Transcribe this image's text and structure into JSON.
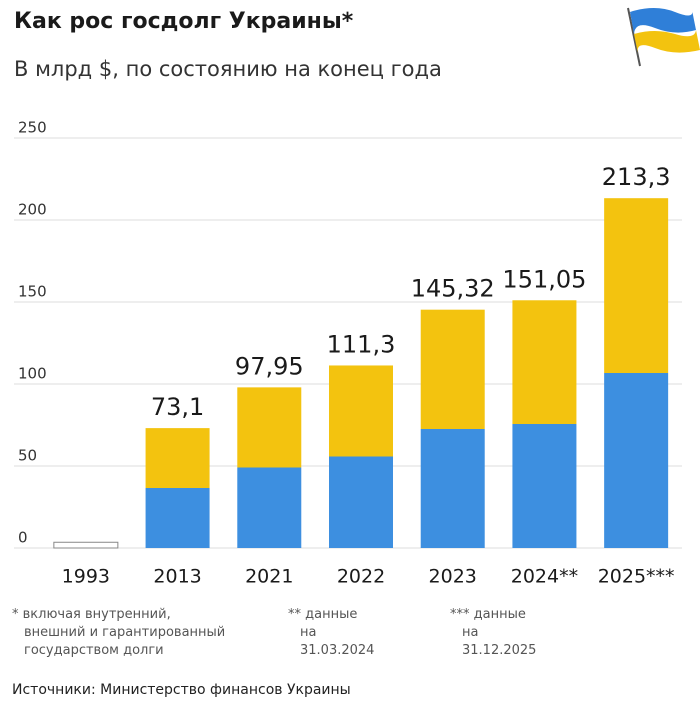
{
  "chart_data": {
    "type": "bar",
    "title": "Как рос госдолг Украины*",
    "subtitle": "В млрд $, по состоянию на конец года",
    "categories": [
      "1993",
      "2013",
      "2021",
      "2022",
      "2023",
      "2024**",
      "2025***"
    ],
    "values": [
      3.5,
      73.1,
      97.95,
      111.3,
      145.32,
      151.05,
      213.3
    ],
    "value_labels": [
      null,
      "73,1",
      "97,95",
      "111,3",
      "145,32",
      "151,05",
      "213,3"
    ],
    "colors": [
      "#f3c30f",
      "#3d8fe0"
    ],
    "ylim": [
      0,
      250
    ],
    "yticks": [
      0,
      50,
      100,
      150,
      200,
      250
    ],
    "grid": true,
    "notes": [
      "* включая внутренний, внешний и гарантированный государством долги",
      "** данные на 31.03.2024",
      "*** данные на 31.12.2025"
    ],
    "source": "Источники: Министерство финансов Украины"
  }
}
